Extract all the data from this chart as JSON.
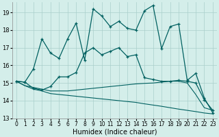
{
  "xlabel": "Humidex (Indice chaleur)",
  "bg_color": "#d4eeea",
  "grid_color": "#aacfcb",
  "line_color": "#006060",
  "xlim": [
    -0.5,
    23.5
  ],
  "ylim": [
    13.0,
    19.6
  ],
  "yticks": [
    13,
    14,
    15,
    16,
    17,
    18,
    19
  ],
  "xticks": [
    0,
    1,
    2,
    3,
    4,
    5,
    6,
    7,
    8,
    9,
    10,
    11,
    12,
    13,
    14,
    15,
    16,
    17,
    18,
    19,
    20,
    21,
    22,
    23
  ],
  "s1_x": [
    0,
    1,
    2,
    3,
    4,
    5,
    6,
    7,
    8,
    9,
    10,
    11,
    12,
    13,
    14,
    15,
    16,
    17,
    18,
    19,
    20,
    21,
    22,
    23
  ],
  "s1_y": [
    15.1,
    15.05,
    15.8,
    17.5,
    16.7,
    16.4,
    17.5,
    18.4,
    16.3,
    19.2,
    18.8,
    18.2,
    18.5,
    18.1,
    18.0,
    19.1,
    19.4,
    16.95,
    18.2,
    18.35,
    15.15,
    15.55,
    14.15,
    13.3
  ],
  "s2_x": [
    0,
    1,
    2,
    3,
    4,
    5,
    6,
    7,
    8,
    9,
    10,
    11,
    12,
    13,
    14,
    15,
    16,
    17,
    18,
    19,
    20,
    21,
    22,
    23
  ],
  "s2_y": [
    15.1,
    15.05,
    14.7,
    14.6,
    14.8,
    15.35,
    15.35,
    15.6,
    16.7,
    17.0,
    16.6,
    16.8,
    17.0,
    16.5,
    16.6,
    15.3,
    15.2,
    15.1,
    15.1,
    15.15,
    15.1,
    15.0,
    14.05,
    13.45
  ],
  "s3_x": [
    0,
    1,
    2,
    3,
    4,
    5,
    6,
    7,
    8,
    9,
    10,
    11,
    12,
    13,
    14,
    15,
    16,
    17,
    18,
    19,
    20,
    21,
    22,
    23
  ],
  "s3_y": [
    15.1,
    14.85,
    14.75,
    14.65,
    14.55,
    14.55,
    14.55,
    14.6,
    14.65,
    14.7,
    14.75,
    14.8,
    14.85,
    14.9,
    14.95,
    14.98,
    15.0,
    15.05,
    15.1,
    15.1,
    15.0,
    14.35,
    13.6,
    13.45
  ],
  "s4_x": [
    0,
    1,
    2,
    3,
    4,
    5,
    6,
    7,
    8,
    9,
    10,
    11,
    12,
    13,
    14,
    15,
    16,
    17,
    18,
    19,
    20,
    21,
    22,
    23
  ],
  "s4_y": [
    15.1,
    14.85,
    14.65,
    14.55,
    14.4,
    14.35,
    14.3,
    14.25,
    14.2,
    14.15,
    14.1,
    14.05,
    14.0,
    13.95,
    13.9,
    13.82,
    13.75,
    13.68,
    13.6,
    13.52,
    13.45,
    13.38,
    13.3,
    13.25
  ]
}
